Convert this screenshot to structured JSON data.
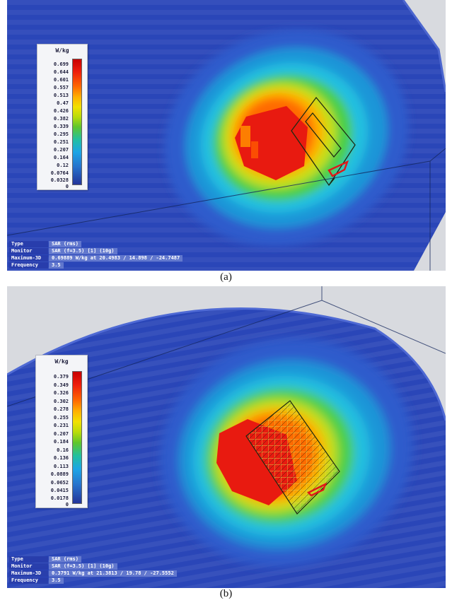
{
  "panels": [
    {
      "caption": "(a)",
      "legend": {
        "unit": "W/kg",
        "ticks": [
          "0.699",
          "0.644",
          "0.601",
          "0.557",
          "0.513",
          "0.47",
          "0.426",
          "0.382",
          "0.339",
          "0.295",
          "0.251",
          "0.207",
          "0.164",
          "0.12",
          "0.0764",
          "0.0328",
          "0"
        ]
      },
      "info": [
        {
          "key": "Type",
          "value": "SAR (rms)"
        },
        {
          "key": "Monitor",
          "value": "SAR (f=3.5) [1] (10g)"
        },
        {
          "key": "Maximum-3D",
          "value": "0.69889 W/kg at 20.4983 / 14.898 / -24.7487"
        },
        {
          "key": "Frequency",
          "value": "3.5"
        }
      ]
    },
    {
      "caption": "(b)",
      "legend": {
        "unit": "W/kg",
        "ticks": [
          "0.379",
          "0.349",
          "0.326",
          "0.302",
          "0.278",
          "0.255",
          "0.231",
          "0.207",
          "0.184",
          "0.16",
          "0.136",
          "0.113",
          "0.0889",
          "0.0652",
          "0.0415",
          "0.0178",
          "0"
        ]
      },
      "info": [
        {
          "key": "Type",
          "value": "SAR (rms)"
        },
        {
          "key": "Monitor",
          "value": "SAR (f=3.5) [1] (10g)"
        },
        {
          "key": "Maximum-3D",
          "value": "0.3791 W/kg at 21.3813 / 19.78 / -27.5552"
        },
        {
          "key": "Frequency",
          "value": "3.5"
        }
      ]
    }
  ],
  "colors": {
    "background_grey": "#d8dadf",
    "low_blue": "#2a46b8",
    "mid_cyan": "#22bfe0",
    "mid_green": "#4ccf46",
    "mid_yellow": "#f0e000",
    "high_orange": "#ff8a00",
    "peak_red": "#e81a10",
    "antenna_outline": "#1d2a12",
    "feed_port": "#e01818",
    "metasurface_grid": "#e2d24a"
  }
}
